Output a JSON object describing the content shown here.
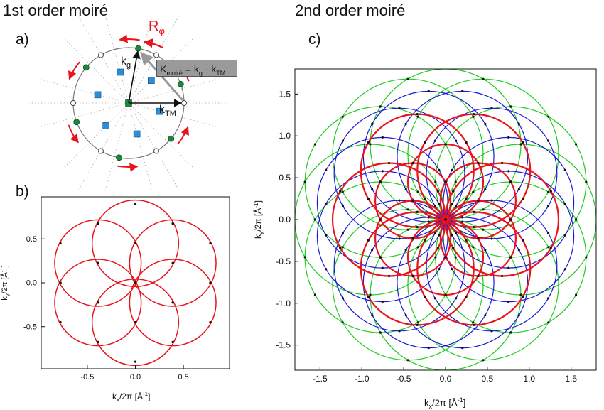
{
  "titles": {
    "left": "1st order moiré",
    "right": "2nd order moiré"
  },
  "panels": {
    "a": "a)",
    "b": "b)",
    "c": "c)"
  },
  "panel_a": {
    "rotation_label": "R",
    "rotation_sub": "φ",
    "kg": "k",
    "kg_sub": "g",
    "ktm": "k",
    "ktm_sub": "TM",
    "formula_K": "K",
    "formula_sub": "moiré",
    "formula_eq": " = k",
    "formula_sub2": "g",
    "formula_minus": " - k",
    "formula_sub3": "TM"
  },
  "colors": {
    "red": "#e8141c",
    "blue": "#1a1ad8",
    "green": "#1fcc1f",
    "marker_blue": "#2a8fd6",
    "marker_green": "#1a8a3a",
    "arrow": "#e8141c"
  },
  "chart_data": [
    {
      "type": "scatter",
      "panel": "b",
      "xlabel": "k",
      "xlabel_sub": "x",
      "xlabel_rest": "/2π [Å",
      "xlabel_sup": "-1",
      "xlabel_end": "]",
      "ylabel": "k",
      "ylabel_sub": "y",
      "ylabel_rest": "/2π [Å",
      "ylabel_sup": "-1",
      "ylabel_end": "]",
      "xlim": [
        -0.98,
        0.98
      ],
      "ylim": [
        -0.98,
        0.98
      ],
      "xticks": [
        -0.5,
        0.0,
        0.5
      ],
      "xtick_labels": [
        "-0.5",
        "0.0",
        "0.5"
      ],
      "yticks": [
        -0.5,
        0.0,
        0.5
      ],
      "ytick_labels": [
        "-0.5",
        "0.0",
        "0.5"
      ],
      "circles": {
        "color": "#e8141c",
        "radius": 0.45,
        "count": 6,
        "center_distance": 0.45
      }
    },
    {
      "type": "scatter",
      "panel": "c",
      "xlabel": "k",
      "xlabel_sub": "x",
      "xlabel_rest": "/2π [Å",
      "xlabel_sup": "-1",
      "xlabel_end": "]",
      "ylabel": "k",
      "ylabel_sub": "y",
      "ylabel_rest": "/2π [Å",
      "ylabel_sup": "-1",
      "ylabel_end": "]",
      "xlim": [
        -1.8,
        1.8
      ],
      "ylim": [
        -1.8,
        1.8
      ],
      "xticks": [
        -1.5,
        -1.0,
        -0.5,
        0.0,
        0.5,
        1.0,
        1.5
      ],
      "xtick_labels": [
        "-1.5",
        "-1.0",
        "-0.5",
        "0.0",
        "0.5",
        "1.0",
        "1.5"
      ],
      "yticks": [
        -1.5,
        -1.0,
        -0.5,
        0.0,
        0.5,
        1.0,
        1.5
      ],
      "ytick_labels": [
        "-1.5",
        "-1.0",
        "-0.5",
        "0.0",
        "0.5",
        "1.0",
        "1.5"
      ],
      "series": [
        {
          "color": "#1fcc1f",
          "radius": 0.9,
          "center_distance": 0.9,
          "count": 12
        },
        {
          "color": "#1a1ad8",
          "radius": 0.78,
          "center_distance": 0.78,
          "count": 12
        },
        {
          "color": "#e8141c",
          "radius": 0.45,
          "center_distance": 0.45,
          "count": 12
        }
      ]
    }
  ]
}
